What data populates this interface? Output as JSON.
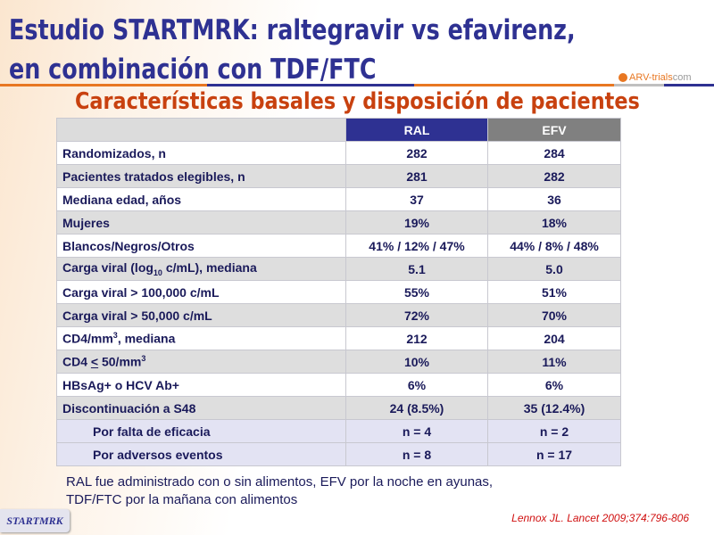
{
  "title_line1": "Estudio STARTMRK: raltegravir vs efavirenz,",
  "title_line2": "en combinación con TDF/FTC",
  "logo": {
    "brand": "ARV-trials",
    "suffix": "com"
  },
  "subtitle": "Características basales y disposición de pacientes",
  "table": {
    "headers": [
      "",
      "RAL",
      "EFV"
    ],
    "rows": [
      {
        "label": "Randomizados, n",
        "ral": "282",
        "efv": "284"
      },
      {
        "label": "Pacientes tratados elegibles, n",
        "ral": "281",
        "efv": "282"
      },
      {
        "label": "Mediana edad, años",
        "ral": "37",
        "efv": "36"
      },
      {
        "label": "Mujeres",
        "ral": "19%",
        "efv": "18%"
      },
      {
        "label": "Blancos/Negros/Otros",
        "ral": "41% / 12% / 47%",
        "efv": "44% / 8% / 48%"
      },
      {
        "label_pre": "Carga viral (log",
        "label_sub": "10",
        "label_post": " c/mL), mediana",
        "ral": "5.1",
        "efv": "5.0"
      },
      {
        "label": "Carga viral > 100,000 c/mL",
        "ral": "55%",
        "efv": "51%"
      },
      {
        "label": "Carga viral > 50,000 c/mL",
        "ral": "72%",
        "efv": "70%"
      },
      {
        "label_pre": "CD4/mm",
        "label_sup": "3",
        "label_post": ", mediana",
        "ral": "212",
        "efv": "204"
      },
      {
        "label_pre": "CD4 ",
        "label_u": "<",
        "label_mid": " 50/mm",
        "label_sup": "3",
        "ral": "10%",
        "efv": "11%"
      },
      {
        "label": "HBsAg+ o HCV Ab+",
        "ral": "6%",
        "efv": "6%"
      },
      {
        "label": "Discontinuación a S48",
        "ral": "24 (8.5%)",
        "efv": "35 (12.4%)"
      },
      {
        "label": "Por falta de eficacia",
        "ral": "n = 4",
        "efv": "n = 2"
      },
      {
        "label": "Por adversos eventos",
        "ral": "n = 8",
        "efv": "n = 17"
      }
    ]
  },
  "note_line1": "RAL fue administrado con o sin alimentos, EFV por la noche en ayunas,",
  "note_line2": "TDF/FTC por la mañana con alimentos",
  "citation": "Lennox JL. Lancet 2009;374:796-806",
  "badge": "STARTMRK"
}
